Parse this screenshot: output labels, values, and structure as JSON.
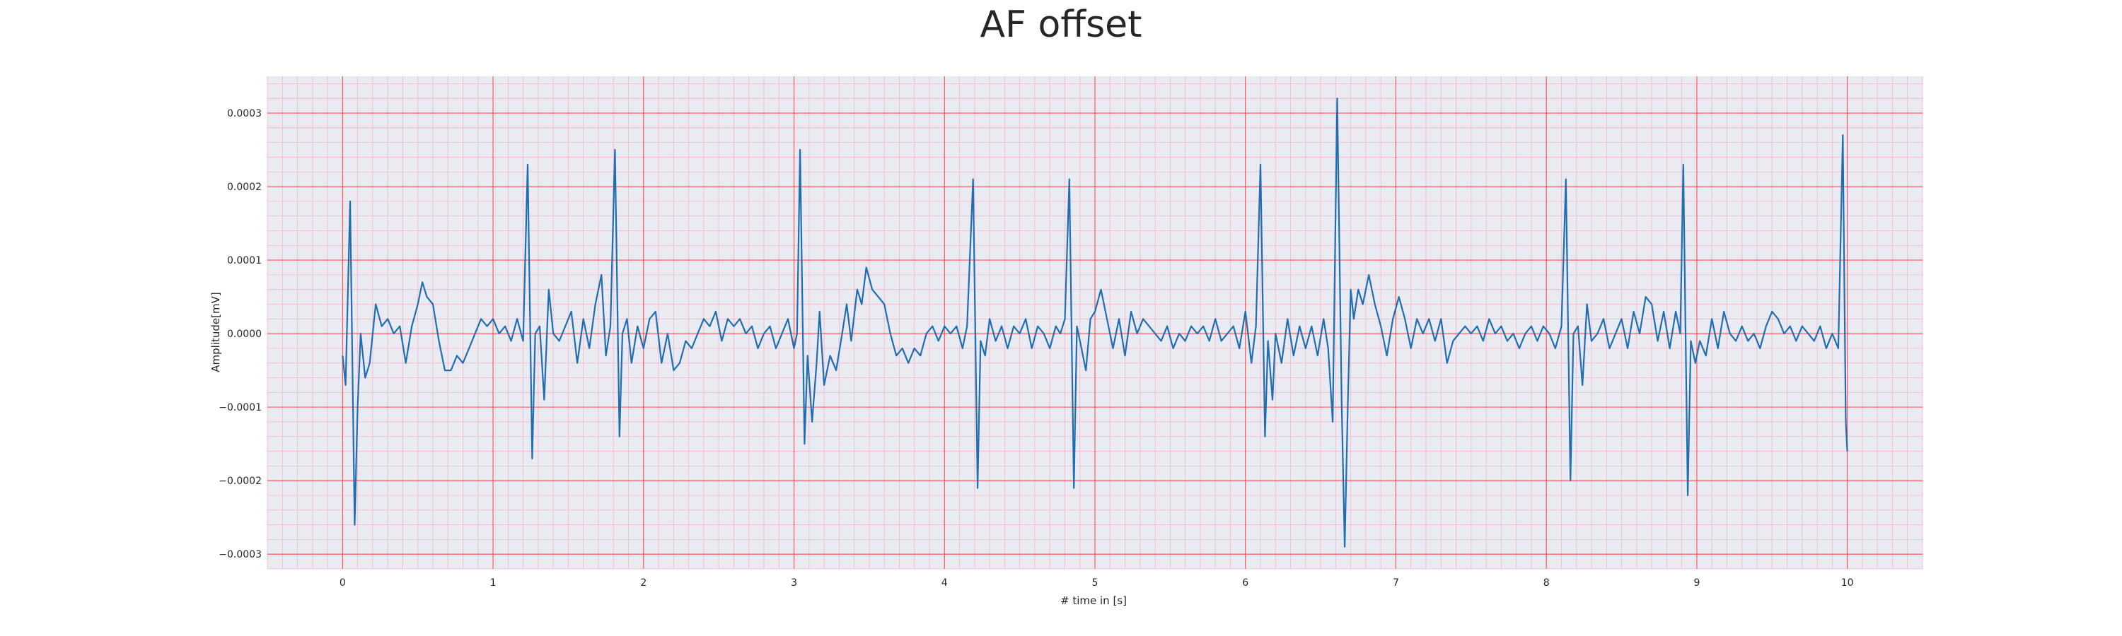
{
  "chart_data": {
    "type": "line",
    "title": "AF offset",
    "xlabel": "# time in [s]",
    "ylabel": "Amplitude[mV]",
    "xlim": [
      -0.5,
      10.5
    ],
    "ylim": [
      -0.00032,
      0.00035
    ],
    "xticks": [
      0,
      1,
      2,
      3,
      4,
      5,
      6,
      7,
      8,
      9,
      10
    ],
    "yticks": [
      -0.0003,
      -0.0002,
      -0.0001,
      0.0,
      0.0001,
      0.0002,
      0.0003
    ],
    "ytick_labels": [
      "−0.0003",
      "−0.0002",
      "−0.0001",
      "0.0000",
      "0.0001",
      "0.0002",
      "0.0003"
    ],
    "grid": true,
    "minor_grid": true,
    "grid_major_color": "#ff4d4d",
    "grid_minor_color": "#f5b5c8",
    "background_color": "#eaeaf2",
    "line_color": "#1f6fb0",
    "series": [
      {
        "name": "",
        "points": [
          [
            0.0,
            -3e-05
          ],
          [
            0.02,
            -7e-05
          ],
          [
            0.05,
            0.00018
          ],
          [
            0.08,
            -0.00026
          ],
          [
            0.1,
            -0.0001
          ],
          [
            0.12,
            0.0
          ],
          [
            0.15,
            -6e-05
          ],
          [
            0.18,
            -4e-05
          ],
          [
            0.2,
            0.0
          ],
          [
            0.22,
            4e-05
          ],
          [
            0.26,
            1e-05
          ],
          [
            0.3,
            2e-05
          ],
          [
            0.34,
            0.0
          ],
          [
            0.38,
            1e-05
          ],
          [
            0.42,
            -4e-05
          ],
          [
            0.46,
            1e-05
          ],
          [
            0.5,
            4e-05
          ],
          [
            0.53,
            7e-05
          ],
          [
            0.56,
            5e-05
          ],
          [
            0.6,
            4e-05
          ],
          [
            0.64,
            -1e-05
          ],
          [
            0.68,
            -5e-05
          ],
          [
            0.72,
            -5e-05
          ],
          [
            0.76,
            -3e-05
          ],
          [
            0.8,
            -4e-05
          ],
          [
            0.84,
            -2e-05
          ],
          [
            0.88,
            0.0
          ],
          [
            0.92,
            2e-05
          ],
          [
            0.96,
            1e-05
          ],
          [
            1.0,
            2e-05
          ],
          [
            1.04,
            0.0
          ],
          [
            1.08,
            1e-05
          ],
          [
            1.12,
            -1e-05
          ],
          [
            1.16,
            2e-05
          ],
          [
            1.2,
            -1e-05
          ],
          [
            1.23,
            0.00023
          ],
          [
            1.26,
            -0.00017
          ],
          [
            1.28,
            0.0
          ],
          [
            1.31,
            1e-05
          ],
          [
            1.34,
            -9e-05
          ],
          [
            1.37,
            6e-05
          ],
          [
            1.4,
            0.0
          ],
          [
            1.44,
            -1e-05
          ],
          [
            1.48,
            1e-05
          ],
          [
            1.52,
            3e-05
          ],
          [
            1.56,
            -4e-05
          ],
          [
            1.6,
            2e-05
          ],
          [
            1.64,
            -2e-05
          ],
          [
            1.68,
            4e-05
          ],
          [
            1.72,
            8e-05
          ],
          [
            1.75,
            -3e-05
          ],
          [
            1.78,
            1e-05
          ],
          [
            1.81,
            0.00025
          ],
          [
            1.84,
            -0.00014
          ],
          [
            1.86,
            0.0
          ],
          [
            1.89,
            2e-05
          ],
          [
            1.92,
            -4e-05
          ],
          [
            1.96,
            1e-05
          ],
          [
            2.0,
            -2e-05
          ],
          [
            2.04,
            2e-05
          ],
          [
            2.08,
            3e-05
          ],
          [
            2.12,
            -4e-05
          ],
          [
            2.16,
            0.0
          ],
          [
            2.2,
            -5e-05
          ],
          [
            2.24,
            -4e-05
          ],
          [
            2.28,
            -1e-05
          ],
          [
            2.32,
            -2e-05
          ],
          [
            2.36,
            0.0
          ],
          [
            2.4,
            2e-05
          ],
          [
            2.44,
            1e-05
          ],
          [
            2.48,
            3e-05
          ],
          [
            2.52,
            -1e-05
          ],
          [
            2.56,
            2e-05
          ],
          [
            2.6,
            1e-05
          ],
          [
            2.64,
            2e-05
          ],
          [
            2.68,
            0.0
          ],
          [
            2.72,
            1e-05
          ],
          [
            2.76,
            -2e-05
          ],
          [
            2.8,
            0.0
          ],
          [
            2.84,
            1e-05
          ],
          [
            2.88,
            -2e-05
          ],
          [
            2.92,
            0.0
          ],
          [
            2.96,
            2e-05
          ],
          [
            3.0,
            -2e-05
          ],
          [
            3.02,
            0.0
          ],
          [
            3.04,
            0.00025
          ],
          [
            3.07,
            -0.00015
          ],
          [
            3.09,
            -3e-05
          ],
          [
            3.12,
            -0.00012
          ],
          [
            3.15,
            -4e-05
          ],
          [
            3.17,
            3e-05
          ],
          [
            3.2,
            -7e-05
          ],
          [
            3.24,
            -3e-05
          ],
          [
            3.28,
            -5e-05
          ],
          [
            3.32,
            0.0
          ],
          [
            3.35,
            4e-05
          ],
          [
            3.38,
            -1e-05
          ],
          [
            3.42,
            6e-05
          ],
          [
            3.45,
            4e-05
          ],
          [
            3.48,
            9e-05
          ],
          [
            3.52,
            6e-05
          ],
          [
            3.56,
            5e-05
          ],
          [
            3.6,
            4e-05
          ],
          [
            3.64,
            0.0
          ],
          [
            3.68,
            -3e-05
          ],
          [
            3.72,
            -2e-05
          ],
          [
            3.76,
            -4e-05
          ],
          [
            3.8,
            -2e-05
          ],
          [
            3.84,
            -3e-05
          ],
          [
            3.88,
            0.0
          ],
          [
            3.92,
            1e-05
          ],
          [
            3.96,
            -1e-05
          ],
          [
            4.0,
            1e-05
          ],
          [
            4.04,
            0.0
          ],
          [
            4.08,
            1e-05
          ],
          [
            4.12,
            -2e-05
          ],
          [
            4.15,
            1e-05
          ],
          [
            4.19,
            0.00021
          ],
          [
            4.22,
            -0.00021
          ],
          [
            4.24,
            -1e-05
          ],
          [
            4.27,
            -3e-05
          ],
          [
            4.3,
            2e-05
          ],
          [
            4.34,
            -1e-05
          ],
          [
            4.38,
            1e-05
          ],
          [
            4.42,
            -2e-05
          ],
          [
            4.46,
            1e-05
          ],
          [
            4.5,
            0.0
          ],
          [
            4.54,
            2e-05
          ],
          [
            4.58,
            -2e-05
          ],
          [
            4.62,
            1e-05
          ],
          [
            4.66,
            0.0
          ],
          [
            4.7,
            -2e-05
          ],
          [
            4.74,
            1e-05
          ],
          [
            4.77,
            0.0
          ],
          [
            4.8,
            2e-05
          ],
          [
            4.83,
            0.00021
          ],
          [
            4.86,
            -0.00021
          ],
          [
            4.88,
            1e-05
          ],
          [
            4.91,
            -2e-05
          ],
          [
            4.94,
            -5e-05
          ],
          [
            4.97,
            2e-05
          ],
          [
            5.0,
            3e-05
          ],
          [
            5.04,
            6e-05
          ],
          [
            5.08,
            2e-05
          ],
          [
            5.12,
            -2e-05
          ],
          [
            5.16,
            2e-05
          ],
          [
            5.2,
            -3e-05
          ],
          [
            5.24,
            3e-05
          ],
          [
            5.28,
            0.0
          ],
          [
            5.32,
            2e-05
          ],
          [
            5.36,
            1e-05
          ],
          [
            5.4,
            0.0
          ],
          [
            5.44,
            -1e-05
          ],
          [
            5.48,
            1e-05
          ],
          [
            5.52,
            -2e-05
          ],
          [
            5.56,
            0.0
          ],
          [
            5.6,
            -1e-05
          ],
          [
            5.64,
            1e-05
          ],
          [
            5.68,
            0.0
          ],
          [
            5.72,
            1e-05
          ],
          [
            5.76,
            -1e-05
          ],
          [
            5.8,
            2e-05
          ],
          [
            5.84,
            -1e-05
          ],
          [
            5.88,
            0.0
          ],
          [
            5.92,
            1e-05
          ],
          [
            5.96,
            -2e-05
          ],
          [
            6.0,
            3e-05
          ],
          [
            6.04,
            -4e-05
          ],
          [
            6.07,
            1e-05
          ],
          [
            6.1,
            0.00023
          ],
          [
            6.13,
            -0.00014
          ],
          [
            6.15,
            -1e-05
          ],
          [
            6.18,
            -9e-05
          ],
          [
            6.2,
            0.0
          ],
          [
            6.24,
            -4e-05
          ],
          [
            6.28,
            2e-05
          ],
          [
            6.32,
            -3e-05
          ],
          [
            6.36,
            1e-05
          ],
          [
            6.4,
            -2e-05
          ],
          [
            6.44,
            1e-05
          ],
          [
            6.48,
            -3e-05
          ],
          [
            6.52,
            2e-05
          ],
          [
            6.55,
            -2e-05
          ],
          [
            6.58,
            -0.00012
          ],
          [
            6.61,
            0.00032
          ],
          [
            6.64,
            -0.0001
          ],
          [
            6.66,
            -0.00029
          ],
          [
            6.68,
            -0.0001
          ],
          [
            6.7,
            6e-05
          ],
          [
            6.72,
            2e-05
          ],
          [
            6.75,
            6e-05
          ],
          [
            6.78,
            4e-05
          ],
          [
            6.82,
            8e-05
          ],
          [
            6.86,
            4e-05
          ],
          [
            6.9,
            1e-05
          ],
          [
            6.94,
            -3e-05
          ],
          [
            6.98,
            2e-05
          ],
          [
            7.02,
            5e-05
          ],
          [
            7.06,
            2e-05
          ],
          [
            7.1,
            -2e-05
          ],
          [
            7.14,
            2e-05
          ],
          [
            7.18,
            0.0
          ],
          [
            7.22,
            2e-05
          ],
          [
            7.26,
            -1e-05
          ],
          [
            7.3,
            2e-05
          ],
          [
            7.34,
            -4e-05
          ],
          [
            7.38,
            -1e-05
          ],
          [
            7.42,
            0.0
          ],
          [
            7.46,
            1e-05
          ],
          [
            7.5,
            0.0
          ],
          [
            7.54,
            1e-05
          ],
          [
            7.58,
            -1e-05
          ],
          [
            7.62,
            2e-05
          ],
          [
            7.66,
            0.0
          ],
          [
            7.7,
            1e-05
          ],
          [
            7.74,
            -1e-05
          ],
          [
            7.78,
            0.0
          ],
          [
            7.82,
            -2e-05
          ],
          [
            7.86,
            0.0
          ],
          [
            7.9,
            1e-05
          ],
          [
            7.94,
            -1e-05
          ],
          [
            7.98,
            1e-05
          ],
          [
            8.02,
            0.0
          ],
          [
            8.06,
            -2e-05
          ],
          [
            8.1,
            1e-05
          ],
          [
            8.13,
            0.00021
          ],
          [
            8.16,
            -0.0002
          ],
          [
            8.18,
            0.0
          ],
          [
            8.21,
            1e-05
          ],
          [
            8.24,
            -7e-05
          ],
          [
            8.27,
            4e-05
          ],
          [
            8.3,
            -1e-05
          ],
          [
            8.34,
            0.0
          ],
          [
            8.38,
            2e-05
          ],
          [
            8.42,
            -2e-05
          ],
          [
            8.46,
            0.0
          ],
          [
            8.5,
            2e-05
          ],
          [
            8.54,
            -2e-05
          ],
          [
            8.58,
            3e-05
          ],
          [
            8.62,
            0.0
          ],
          [
            8.66,
            5e-05
          ],
          [
            8.7,
            4e-05
          ],
          [
            8.74,
            -1e-05
          ],
          [
            8.78,
            3e-05
          ],
          [
            8.82,
            -2e-05
          ],
          [
            8.86,
            3e-05
          ],
          [
            8.89,
            0.0
          ],
          [
            8.91,
            0.00023
          ],
          [
            8.94,
            -0.00022
          ],
          [
            8.96,
            -1e-05
          ],
          [
            8.99,
            -4e-05
          ],
          [
            9.02,
            -1e-05
          ],
          [
            9.06,
            -3e-05
          ],
          [
            9.1,
            2e-05
          ],
          [
            9.14,
            -2e-05
          ],
          [
            9.18,
            3e-05
          ],
          [
            9.22,
            0.0
          ],
          [
            9.26,
            -1e-05
          ],
          [
            9.3,
            1e-05
          ],
          [
            9.34,
            -1e-05
          ],
          [
            9.38,
            0.0
          ],
          [
            9.42,
            -2e-05
          ],
          [
            9.46,
            1e-05
          ],
          [
            9.5,
            3e-05
          ],
          [
            9.54,
            2e-05
          ],
          [
            9.58,
            0.0
          ],
          [
            9.62,
            1e-05
          ],
          [
            9.66,
            -1e-05
          ],
          [
            9.7,
            1e-05
          ],
          [
            9.74,
            0.0
          ],
          [
            9.78,
            -1e-05
          ],
          [
            9.82,
            1e-05
          ],
          [
            9.86,
            -2e-05
          ],
          [
            9.9,
            0.0
          ],
          [
            9.94,
            -2e-05
          ],
          [
            9.97,
            0.00027
          ],
          [
            9.99,
            -0.00012
          ],
          [
            10.0,
            -0.00016
          ]
        ]
      }
    ]
  }
}
